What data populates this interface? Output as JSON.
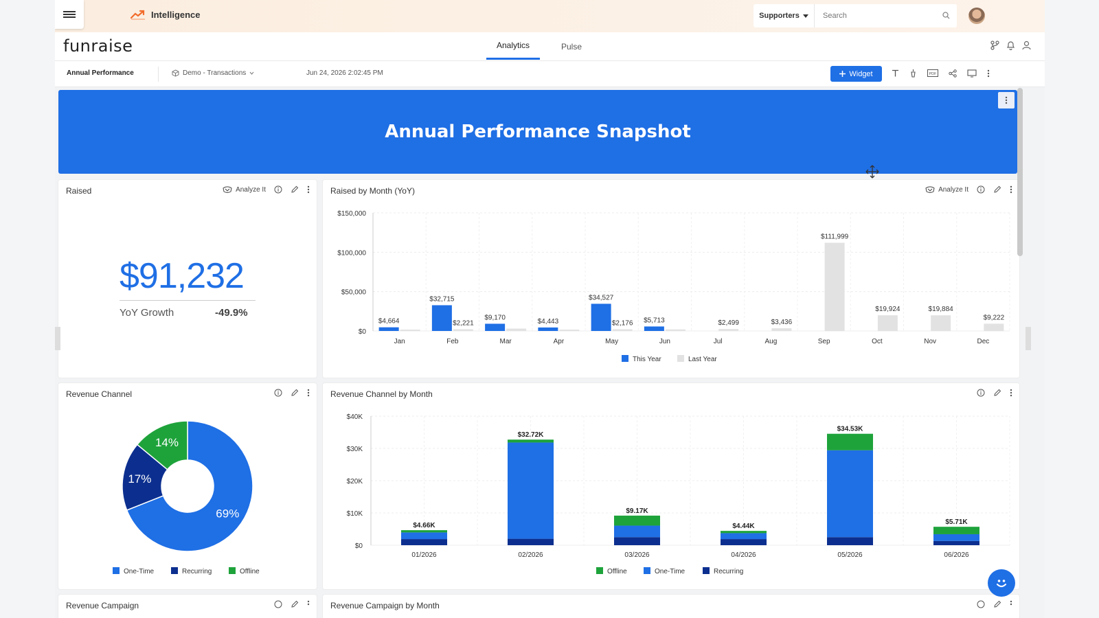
{
  "app": {
    "name": "Intelligence",
    "logo": "funraise"
  },
  "topbar": {
    "supporters_label": "Supporters",
    "search_placeholder": "Search"
  },
  "nav": {
    "tabs": [
      {
        "label": "Analytics",
        "active": true
      },
      {
        "label": "Pulse",
        "active": false
      }
    ]
  },
  "toolbar": {
    "title": "Annual Performance",
    "datasource": "Demo - Transactions",
    "timestamp": "Jun 24, 2026 2:02:45 PM",
    "widget_label": "Widget"
  },
  "banner": {
    "title": "Annual Performance Snapshot"
  },
  "raised_card": {
    "title": "Raised",
    "analyze_label": "Analyze It",
    "value": "$91,232",
    "yoy_label": "YoY Growth",
    "yoy_value": "-49.9%"
  },
  "rbm_card": {
    "title": "Raised by Month (YoY)",
    "analyze_label": "Analyze It"
  },
  "rc_card": {
    "title": "Revenue Channel"
  },
  "rcm_card": {
    "title": "Revenue Channel by Month"
  },
  "rcamp_card": {
    "title": "Revenue Campaign"
  },
  "rcampm_card": {
    "title": "Revenue Campaign by Month"
  },
  "colors": {
    "accent": "#1f6fe5",
    "dark_blue": "#0c2f8f",
    "green": "#1ea33b",
    "grey": "#e2e2e2"
  },
  "chart_data": [
    {
      "type": "bar",
      "title": "Raised by Month (YoY)",
      "categories": [
        "Jan",
        "Feb",
        "Mar",
        "Apr",
        "May",
        "Jun",
        "Jul",
        "Aug",
        "Sep",
        "Oct",
        "Nov",
        "Dec"
      ],
      "series": [
        {
          "name": "This Year",
          "values": [
            4664,
            32715,
            9170,
            4443,
            34527,
            5713,
            null,
            null,
            null,
            null,
            null,
            null
          ],
          "labels": [
            "$4,664",
            "$32,715",
            "$9,170",
            "$4,443",
            "$34,527",
            "$5,713",
            "",
            "",
            "",
            "",
            "",
            ""
          ]
        },
        {
          "name": "Last Year",
          "values": [
            1800,
            2221,
            3000,
            1500,
            2176,
            2000,
            2499,
            3436,
            111999,
            19924,
            19884,
            9222
          ],
          "labels": [
            "",
            "$2,221",
            "",
            "",
            "$2,176",
            "",
            "$2,499",
            "$3,436",
            "$111,999",
            "$19,924",
            "$19,884",
            "$9,222"
          ]
        }
      ],
      "yticks": [
        "$0",
        "$50,000",
        "$100,000",
        "$150,000"
      ],
      "ylim": [
        0,
        150000
      ],
      "legend": "bottom"
    },
    {
      "type": "pie",
      "title": "Revenue Channel",
      "slices": [
        {
          "name": "One-Time",
          "value": 69,
          "label": "69%"
        },
        {
          "name": "Recurring",
          "value": 17,
          "label": "17%"
        },
        {
          "name": "Offline",
          "value": 14,
          "label": "14%"
        }
      ],
      "legend": "bottom"
    },
    {
      "type": "bar",
      "title": "Revenue Channel by Month",
      "stacked": true,
      "categories": [
        "01/2026",
        "02/2026",
        "03/2026",
        "04/2026",
        "05/2026",
        "06/2026"
      ],
      "series": [
        {
          "name": "Recurring",
          "values": [
            1900,
            2000,
            2500,
            1900,
            2500,
            1300
          ]
        },
        {
          "name": "One-Time",
          "values": [
            2060,
            29820,
            3570,
            1840,
            26930,
            2110
          ]
        },
        {
          "name": "Offline",
          "values": [
            700,
            900,
            3100,
            700,
            5100,
            2300
          ]
        }
      ],
      "totals": [
        "$4.66K",
        "$32.72K",
        "$9.17K",
        "$4.44K",
        "$34.53K",
        "$5.71K"
      ],
      "legend_order": [
        "Offline",
        "One-Time",
        "Recurring"
      ],
      "yticks": [
        "$0",
        "$10K",
        "$20K",
        "$30K",
        "$40K"
      ],
      "ylim": [
        0,
        40000
      ],
      "legend": "bottom"
    }
  ]
}
